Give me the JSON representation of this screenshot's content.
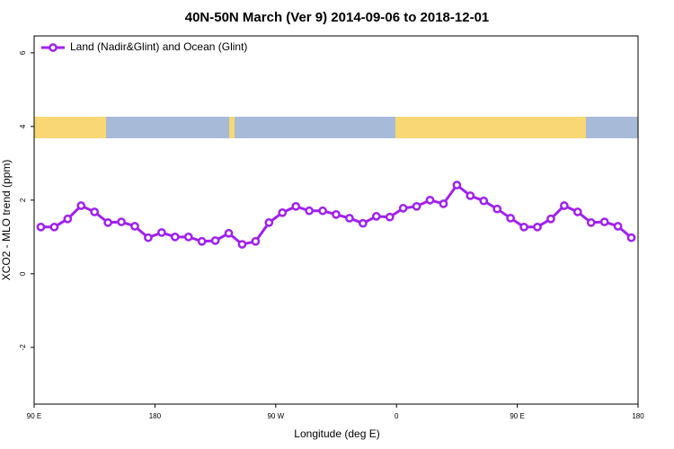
{
  "chart_data": {
    "type": "line",
    "title": "40N-50N March (Ver 9)   2014-09-06 to 2018-12-01",
    "x_label": "Longitude (deg E)",
    "y_label": "XCO2 - MLO trend (ppm)",
    "x": [
      95,
      105,
      115,
      125,
      135,
      145,
      155,
      165,
      175,
      185,
      195,
      205,
      215,
      225,
      235,
      245,
      255,
      265,
      275,
      285,
      295,
      305,
      315,
      325,
      335,
      345,
      355,
      365,
      375,
      385,
      395,
      405,
      415,
      425,
      435,
      445,
      455,
      465,
      475,
      485,
      495,
      505,
      515,
      525,
      535
    ],
    "series": [
      {
        "name": "Land (Nadir&Glint) and Ocean (Glint)",
        "color": "#a020f0",
        "values": [
          1.27,
          1.27,
          1.49,
          1.85,
          1.68,
          1.39,
          1.41,
          1.29,
          0.98,
          1.12,
          1.0,
          1.0,
          0.88,
          0.9,
          1.1,
          0.8,
          0.88,
          1.39,
          1.66,
          1.83,
          1.71,
          1.71,
          1.61,
          1.51,
          1.37,
          1.56,
          1.54,
          1.78,
          1.83,
          2.0,
          1.9,
          2.41,
          2.12,
          1.98,
          1.76,
          1.51,
          1.27,
          1.27,
          1.49,
          1.85,
          1.68,
          1.39,
          1.41,
          1.29,
          0.98
        ]
      }
    ],
    "xlim": [
      90,
      540
    ],
    "xticks": [
      {
        "value": 90,
        "label": "90 E"
      },
      180,
      {
        "value": 270,
        "label": "90 W"
      },
      {
        "value": 360,
        "label": "0"
      },
      {
        "value": 450,
        "label": "90 E"
      },
      {
        "value": 540,
        "label": "180"
      }
    ],
    "ylim": [
      -3.54,
      6.46
    ],
    "yticks": [
      -2,
      0,
      2,
      4,
      6
    ],
    "grid": false,
    "legend": "top-left"
  }
}
